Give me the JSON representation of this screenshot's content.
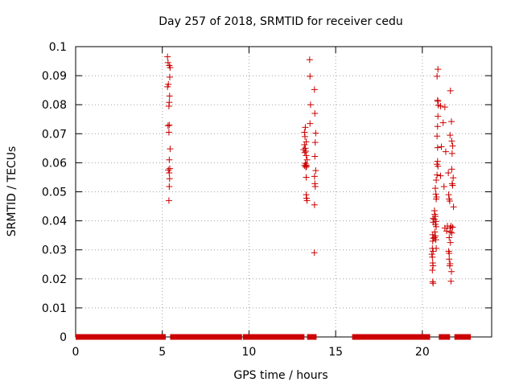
{
  "chart_data": {
    "type": "scatter",
    "title": "Day 257 of 2018, SRMTID for receiver cedu",
    "xlabel": "GPS time / hours",
    "ylabel": "SRMTID / TECUs",
    "xlim": [
      0,
      24
    ],
    "ylim": [
      0,
      0.1
    ],
    "xticks": [
      0,
      5,
      10,
      15,
      20
    ],
    "xtick_labels": [
      "0",
      "5",
      "10",
      "15",
      "20"
    ],
    "yticks": [
      0,
      0.01,
      0.02,
      0.03,
      0.04,
      0.05,
      0.06,
      0.07,
      0.08,
      0.09,
      0.1
    ],
    "ytick_labels": [
      "0",
      "0.01",
      "0.02",
      "0.03",
      "0.04",
      "0.05",
      "0.06",
      "0.07",
      "0.08",
      "0.09",
      "0.1"
    ],
    "grid": true,
    "marker": "+",
    "color": "#cc0000",
    "zero_segments": [
      [
        0.0,
        5.2
      ],
      [
        5.45,
        9.6
      ],
      [
        9.65,
        13.2
      ],
      [
        13.35,
        13.9
      ],
      [
        15.95,
        20.45
      ],
      [
        20.95,
        21.6
      ],
      [
        21.85,
        22.8
      ]
    ],
    "points": [
      [
        5.3,
        0.0965
      ],
      [
        5.33,
        0.0945
      ],
      [
        5.4,
        0.0935
      ],
      [
        5.45,
        0.0928
      ],
      [
        5.43,
        0.0895
      ],
      [
        5.35,
        0.087
      ],
      [
        5.3,
        0.0862
      ],
      [
        5.42,
        0.083
      ],
      [
        5.4,
        0.0808
      ],
      [
        5.38,
        0.0795
      ],
      [
        5.4,
        0.073
      ],
      [
        5.33,
        0.0728
      ],
      [
        5.38,
        0.0705
      ],
      [
        5.45,
        0.0648
      ],
      [
        5.4,
        0.061
      ],
      [
        5.43,
        0.058
      ],
      [
        5.35,
        0.0575
      ],
      [
        5.4,
        0.0565
      ],
      [
        5.42,
        0.0545
      ],
      [
        5.4,
        0.0518
      ],
      [
        5.38,
        0.047
      ],
      [
        13.25,
        0.0722
      ],
      [
        13.2,
        0.0705
      ],
      [
        13.23,
        0.069
      ],
      [
        13.3,
        0.0672
      ],
      [
        13.2,
        0.0662
      ],
      [
        13.25,
        0.065
      ],
      [
        13.15,
        0.0645
      ],
      [
        13.28,
        0.064
      ],
      [
        13.22,
        0.0635
      ],
      [
        13.3,
        0.0625
      ],
      [
        13.35,
        0.061
      ],
      [
        13.25,
        0.0598
      ],
      [
        13.3,
        0.0592
      ],
      [
        13.32,
        0.0588
      ],
      [
        13.28,
        0.0585
      ],
      [
        13.2,
        0.059
      ],
      [
        13.3,
        0.055
      ],
      [
        13.3,
        0.049
      ],
      [
        13.32,
        0.0478
      ],
      [
        13.35,
        0.047
      ],
      [
        13.5,
        0.0955
      ],
      [
        13.52,
        0.0898
      ],
      [
        13.55,
        0.08
      ],
      [
        13.52,
        0.0735
      ],
      [
        13.78,
        0.0852
      ],
      [
        13.8,
        0.077
      ],
      [
        13.85,
        0.0702
      ],
      [
        13.82,
        0.067
      ],
      [
        13.8,
        0.0622
      ],
      [
        13.85,
        0.0573
      ],
      [
        13.78,
        0.0553
      ],
      [
        13.8,
        0.0528
      ],
      [
        13.82,
        0.0518
      ],
      [
        13.78,
        0.0455
      ],
      [
        13.77,
        0.029
      ],
      [
        20.62,
        0.0408
      ],
      [
        20.63,
        0.0395
      ],
      [
        20.6,
        0.0352
      ],
      [
        20.63,
        0.034
      ],
      [
        20.6,
        0.033
      ],
      [
        20.58,
        0.0305
      ],
      [
        20.62,
        0.0295
      ],
      [
        20.55,
        0.0285
      ],
      [
        20.58,
        0.0275
      ],
      [
        20.6,
        0.0255
      ],
      [
        20.62,
        0.0245
      ],
      [
        20.58,
        0.023
      ],
      [
        20.6,
        0.019
      ],
      [
        20.62,
        0.0185
      ],
      [
        20.7,
        0.0435
      ],
      [
        20.72,
        0.0422
      ],
      [
        20.75,
        0.0415
      ],
      [
        20.7,
        0.0405
      ],
      [
        20.78,
        0.0398
      ],
      [
        20.75,
        0.0388
      ],
      [
        20.8,
        0.038
      ],
      [
        20.72,
        0.0362
      ],
      [
        20.75,
        0.0348
      ],
      [
        20.7,
        0.0342
      ],
      [
        20.78,
        0.0335
      ],
      [
        20.8,
        0.0305
      ],
      [
        20.75,
        0.0512
      ],
      [
        20.78,
        0.0492
      ],
      [
        20.82,
        0.0482
      ],
      [
        20.8,
        0.0475
      ],
      [
        20.85,
        0.0558
      ],
      [
        20.8,
        0.054
      ],
      [
        20.88,
        0.0605
      ],
      [
        20.85,
        0.0595
      ],
      [
        20.9,
        0.0588
      ],
      [
        20.88,
        0.0652
      ],
      [
        20.85,
        0.0692
      ],
      [
        20.88,
        0.0725
      ],
      [
        20.9,
        0.076
      ],
      [
        20.92,
        0.0798
      ],
      [
        20.88,
        0.0815
      ],
      [
        20.9,
        0.0812
      ],
      [
        20.85,
        0.0898
      ],
      [
        20.9,
        0.0922
      ],
      [
        21.05,
        0.0795
      ],
      [
        21.3,
        0.0792
      ],
      [
        21.2,
        0.0738
      ],
      [
        21.1,
        0.0655
      ],
      [
        21.05,
        0.0555
      ],
      [
        21.35,
        0.0638
      ],
      [
        21.25,
        0.0518
      ],
      [
        21.3,
        0.0375
      ],
      [
        21.4,
        0.0365
      ],
      [
        21.45,
        0.0382
      ],
      [
        21.5,
        0.0565
      ],
      [
        21.52,
        0.049
      ],
      [
        21.55,
        0.0475
      ],
      [
        21.58,
        0.0468
      ],
      [
        21.52,
        0.0295
      ],
      [
        21.55,
        0.0288
      ],
      [
        21.55,
        0.0268
      ],
      [
        21.6,
        0.0252
      ],
      [
        21.58,
        0.0245
      ],
      [
        21.6,
        0.0375
      ],
      [
        21.62,
        0.0362
      ],
      [
        21.55,
        0.0342
      ],
      [
        21.62,
        0.0325
      ],
      [
        21.65,
        0.0382
      ],
      [
        21.6,
        0.0695
      ],
      [
        21.62,
        0.0848
      ],
      [
        21.68,
        0.0742
      ],
      [
        21.7,
        0.0675
      ],
      [
        21.72,
        0.0632
      ],
      [
        21.75,
        0.0658
      ],
      [
        21.7,
        0.0578
      ],
      [
        21.78,
        0.0548
      ],
      [
        21.72,
        0.0528
      ],
      [
        21.75,
        0.0522
      ],
      [
        21.8,
        0.0448
      ],
      [
        21.75,
        0.0378
      ],
      [
        21.7,
        0.0358
      ],
      [
        21.68,
        0.0225
      ],
      [
        21.65,
        0.0192
      ]
    ]
  }
}
